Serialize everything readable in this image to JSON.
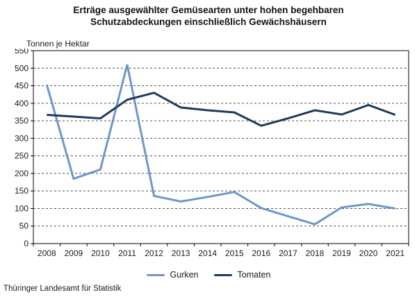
{
  "title": {
    "line1": "Erträge ausgewählter Gemüsearten unter hohen begehbaren",
    "line2": "Schutzabdeckungen einschließlich Gewächshäusern"
  },
  "unit_label": "Tonnen je Hektar",
  "source": "Thüringer Landesamt für Statistik",
  "colors": {
    "gurken_line": "#6D96C8",
    "tomaten_line": "#1E3A5C",
    "grid_line": "#4d4d4d",
    "axis_line": "#000000",
    "text": "#1a1a1a"
  },
  "chart_data": {
    "type": "line",
    "title": "Erträge ausgewählter Gemüsearten unter hohen begehbaren Schutzabdeckungen einschließlich Gewächshäusern",
    "ylabel": "Tonnen je Hektar",
    "xlabel": "",
    "x": [
      "2008",
      "2009",
      "2010",
      "2011",
      "2012",
      "2013",
      "2014",
      "2015",
      "2016",
      "2017",
      "2018",
      "2019",
      "2020",
      "2021"
    ],
    "series": [
      {
        "name": "Gurken",
        "color": "#6D96C8",
        "values": [
          453,
          185,
          211,
          510,
          136,
          120,
          133,
          147,
          101,
          78,
          55,
          103,
          113,
          100
        ]
      },
      {
        "name": "Tomaten",
        "color": "#1E3A5C",
        "values": [
          367,
          362,
          357,
          410,
          430,
          388,
          380,
          374,
          336,
          357,
          380,
          368,
          395,
          367
        ]
      }
    ],
    "ylim": [
      0,
      550
    ],
    "ytick_step": 50,
    "grid": true,
    "grid_style": "dashed",
    "legend_position": "bottom"
  }
}
